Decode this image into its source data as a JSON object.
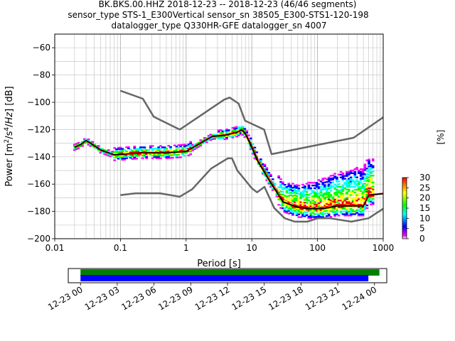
{
  "header": {
    "line1": "BK.BKS.00.HHZ   2018-12-23 -- 2018-12-23  (46/46 segments)",
    "line2": "sensor_type STS-1_E300Vertical sensor_sn 38505_E300-STS1-120-198",
    "line3": "datalogger_type Q330HR-GFE datalogger_sn 4007"
  },
  "chart_data": [
    {
      "type": "line",
      "subtype": "probabilistic-power-spectral-density",
      "xlabel": "Period [s]",
      "ylabel": "Power [m²/s⁴/Hz] [dB]",
      "xscale": "log",
      "xlim": [
        0.01,
        1000
      ],
      "ylim": [
        -200,
        -50
      ],
      "x_ticks": [
        {
          "value": 0.01,
          "label": "0.01"
        },
        {
          "value": 0.1,
          "label": "0.1"
        },
        {
          "value": 1,
          "label": "1"
        },
        {
          "value": 10,
          "label": "10"
        },
        {
          "value": 100,
          "label": "100"
        },
        {
          "value": 1000,
          "label": "1000"
        }
      ],
      "y_ticks": [
        {
          "value": -60,
          "label": "−60"
        },
        {
          "value": -80,
          "label": "−80"
        },
        {
          "value": -100,
          "label": "−100"
        },
        {
          "value": -120,
          "label": "−120"
        },
        {
          "value": -140,
          "label": "−140"
        },
        {
          "value": -160,
          "label": "−160"
        },
        {
          "value": -180,
          "label": "−180"
        },
        {
          "value": -200,
          "label": "−200"
        }
      ],
      "grid": true,
      "series": [
        {
          "role": "new-high-noise-model",
          "color": "#666666",
          "x": [
            0.1,
            0.22,
            0.32,
            0.8,
            3.8,
            4.6,
            6.3,
            7.9,
            15.4,
            20,
            354.8,
            1000
          ],
          "y": [
            -91.5,
            -97.4,
            -110.5,
            -120,
            -98,
            -96.5,
            -101,
            -113.5,
            -120,
            -138,
            -126,
            -111
          ]
        },
        {
          "role": "new-low-noise-model",
          "color": "#666666",
          "x": [
            0.1,
            0.17,
            0.4,
            0.8,
            1.24,
            2.4,
            4.3,
            5,
            6,
            10,
            12,
            15.6,
            21.9,
            31.6,
            45,
            70,
            101,
            154,
            328,
            600,
            1000
          ],
          "y": [
            -168,
            -166.7,
            -166.7,
            -169.2,
            -163.7,
            -148.6,
            -141.1,
            -141.1,
            -149.9,
            -163,
            -166,
            -162,
            -177.5,
            -185,
            -187.5,
            -187.5,
            -185,
            -185,
            -187.5,
            -185,
            -178
          ]
        },
        {
          "role": "mode",
          "color": "#000000",
          "x": [
            0.02,
            0.025,
            0.03,
            0.035,
            0.05,
            0.08,
            0.12,
            0.2,
            0.5,
            1,
            1.5,
            2.5,
            4,
            6,
            7,
            8,
            10,
            12,
            15,
            20,
            30,
            50,
            80,
            120,
            200,
            300,
            500,
            600,
            1000
          ],
          "y": [
            -133,
            -131,
            -128,
            -130,
            -135,
            -138.5,
            -138,
            -137,
            -137,
            -136,
            -131,
            -125,
            -124,
            -122,
            -120,
            -123,
            -133,
            -142,
            -150,
            -160,
            -173,
            -177,
            -178,
            -178,
            -176,
            -176,
            -176,
            -168,
            -167
          ]
        },
        {
          "role": "mean",
          "color": "#ff0000",
          "x": [
            0.02,
            0.025,
            0.03,
            0.035,
            0.05,
            0.08,
            0.12,
            0.2,
            0.5,
            1,
            1.5,
            2.5,
            4,
            6,
            7,
            8,
            10,
            12,
            15,
            20,
            30,
            50,
            80,
            120,
            200,
            300,
            500,
            600,
            1000
          ],
          "y": [
            -133.5,
            -131.5,
            -128.5,
            -130.5,
            -135.5,
            -139,
            -138.5,
            -136.5,
            -136.5,
            -135.5,
            -130.5,
            -124.5,
            -123.5,
            -121.5,
            -119.5,
            -122,
            -131,
            -140,
            -148,
            -158,
            -171,
            -176,
            -177,
            -177,
            -175,
            -175,
            -175,
            -167.5,
            -166.5
          ]
        }
      ],
      "colorbar": {
        "label": "[%]",
        "min": 0,
        "max": 30,
        "ticks": [
          "0",
          "5",
          "10",
          "15",
          "20",
          "25",
          "30"
        ],
        "colormap": [
          "#ffffff",
          "#ff00ff",
          "#0000ff",
          "#00ffff",
          "#00ff00",
          "#ffff00",
          "#ff0000"
        ]
      }
    },
    {
      "type": "timeline",
      "subtype": "data-coverage",
      "x_ticks": [
        "12-23 00",
        "12-23 03",
        "12-23 06",
        "12-23 09",
        "12-23 12",
        "12-23 15",
        "12-23 18",
        "12-23 21",
        "12-24 00"
      ],
      "xlim_hours": [
        -1,
        25
      ],
      "bars": [
        {
          "role": "psd-segments",
          "color": "#008000",
          "start_hours": 0,
          "end_hours": 24.4
        },
        {
          "role": "data-available",
          "color": "#0000ff",
          "start_hours": 0,
          "end_hours": 23.5
        }
      ]
    }
  ]
}
